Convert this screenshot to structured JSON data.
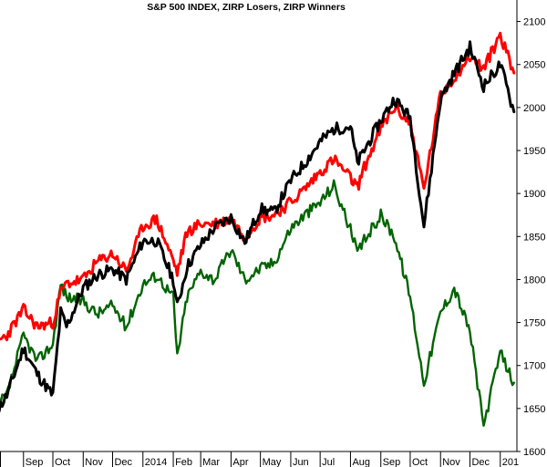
{
  "chart_data": {
    "type": "line",
    "title": "S&P 500 INDEX, ZIRP Losers, ZIRP Winners",
    "xlabel": "",
    "ylabel": "",
    "ylim": [
      1600,
      2125
    ],
    "y_ticks": [
      1600,
      1650,
      1700,
      1750,
      1800,
      1850,
      1900,
      1950,
      2000,
      2050,
      2100
    ],
    "x_ticks": [
      "Sep",
      "Oct",
      "Nov",
      "Dec",
      "2014",
      "Feb",
      "Mar",
      "Apr",
      "May",
      "Jun",
      "Jul",
      "Aug",
      "Sep",
      "Oct",
      "Nov",
      "Dec",
      "201"
    ],
    "grid": false,
    "legend": "none",
    "x": [
      "2013-08-01",
      "2013-08-15",
      "2013-09-01",
      "2013-09-15",
      "2013-10-01",
      "2013-10-09",
      "2013-10-15",
      "2013-11-01",
      "2013-11-15",
      "2013-12-01",
      "2013-12-15",
      "2014-01-01",
      "2014-01-15",
      "2014-02-01",
      "2014-02-05",
      "2014-02-15",
      "2014-03-01",
      "2014-03-15",
      "2014-04-01",
      "2014-04-15",
      "2014-05-01",
      "2014-05-15",
      "2014-06-01",
      "2014-06-15",
      "2014-07-01",
      "2014-07-15",
      "2014-08-01",
      "2014-08-08",
      "2014-08-15",
      "2014-09-01",
      "2014-09-15",
      "2014-10-01",
      "2014-10-15",
      "2014-11-01",
      "2014-11-15",
      "2014-12-01",
      "2014-12-15",
      "2015-01-01",
      "2015-01-15"
    ],
    "series": [
      {
        "color": "#000000",
        "values": [
          1640,
          1665,
          1720,
          1690,
          1665,
          1762,
          1745,
          1790,
          1805,
          1812,
          1800,
          1845,
          1845,
          1800,
          1768,
          1815,
          1840,
          1860,
          1872,
          1843,
          1882,
          1878,
          1915,
          1935,
          1960,
          1975,
          1978,
          1935,
          1950,
          1985,
          2010,
          1988,
          1862,
          2010,
          2040,
          2070,
          2025,
          2050,
          1995
        ]
      },
      {
        "color": "#ff0000",
        "values": [
          1725,
          1735,
          1765,
          1745,
          1750,
          1785,
          1795,
          1800,
          1820,
          1830,
          1810,
          1862,
          1870,
          1822,
          1808,
          1855,
          1865,
          1865,
          1870,
          1850,
          1872,
          1875,
          1890,
          1905,
          1925,
          1940,
          1918,
          1907,
          1930,
          1975,
          2000,
          1982,
          1905,
          2015,
          2035,
          2060,
          2045,
          2085,
          2040
        ]
      },
      {
        "color": "#006400",
        "values": [
          1650,
          1665,
          1735,
          1705,
          1725,
          1795,
          1780,
          1775,
          1760,
          1770,
          1745,
          1795,
          1805,
          1780,
          1710,
          1780,
          1810,
          1800,
          1835,
          1800,
          1813,
          1820,
          1860,
          1875,
          1890,
          1910,
          1858,
          1830,
          1845,
          1875,
          1850,
          1780,
          1680,
          1762,
          1790,
          1740,
          1630,
          1715,
          1680
        ]
      }
    ]
  }
}
